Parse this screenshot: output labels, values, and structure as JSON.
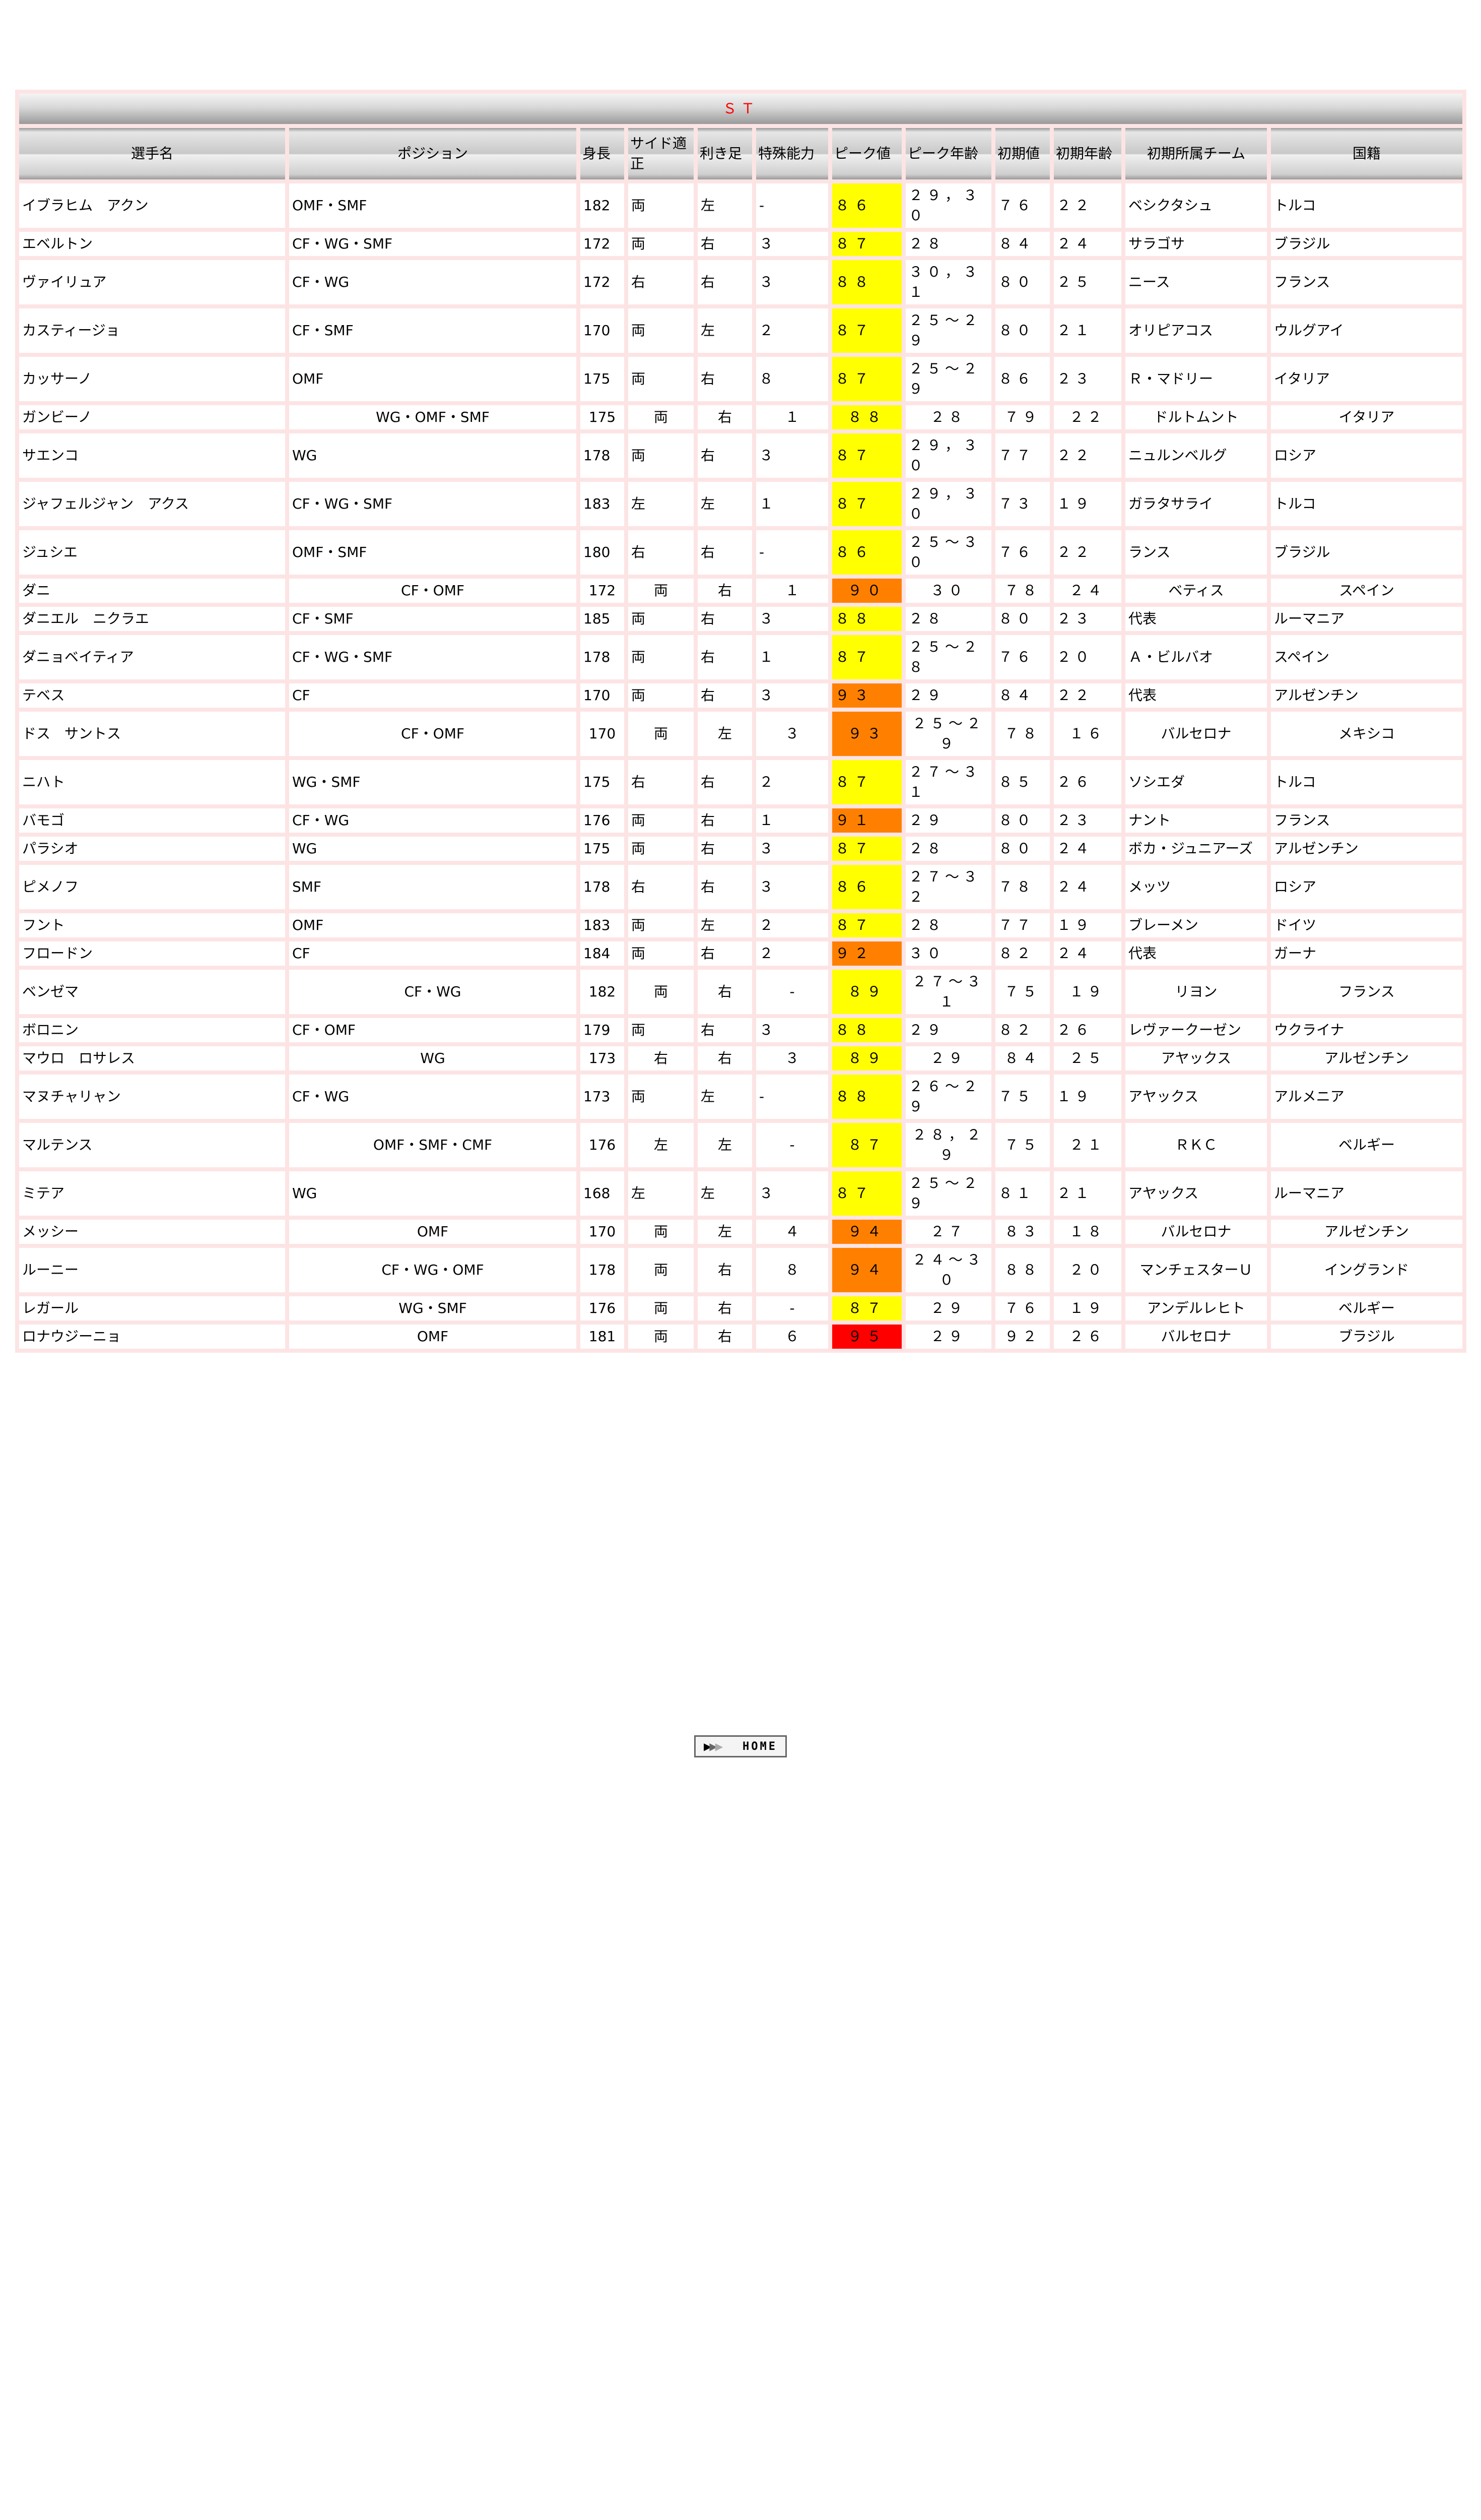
{
  "title": "ＳＴ",
  "headers": [
    "選手名",
    "ポジション",
    "身長",
    "サイド適正",
    "利き足",
    "特殊能力",
    "ピーク値",
    "ピーク年齢",
    "初期値",
    "初期年齢",
    "初期所属チーム",
    "国籍"
  ],
  "peak_colors": {
    "yellow": "#ffff00",
    "orange": "#ff8000",
    "red": "#ff0000"
  },
  "rows": [
    {
      "name": "イブラヒム　アクン",
      "pos": "OMF・SMF",
      "height": "182",
      "side": "両",
      "foot": "左",
      "special": "-",
      "peak": "８６",
      "peak_color": "yellow",
      "peak_age": "２９，３０",
      "init": "７６",
      "init_age": "２２",
      "team": "ベシクタシュ",
      "nation": "トルコ"
    },
    {
      "name": "エベルトン",
      "pos": "CF・WG・SMF",
      "height": "172",
      "side": "両",
      "foot": "右",
      "special": "３",
      "peak": "８７",
      "peak_color": "yellow",
      "peak_age": "２８",
      "init": "８４",
      "init_age": "２４",
      "team": "サラゴサ",
      "nation": "ブラジル"
    },
    {
      "name": "ヴァイリュア",
      "pos": "CF・WG",
      "height": "172",
      "side": "右",
      "foot": "右",
      "special": "３",
      "peak": "８８",
      "peak_color": "yellow",
      "peak_age": "３０，３１",
      "init": "８０",
      "init_age": "２５",
      "team": "ニース",
      "nation": "フランス"
    },
    {
      "name": "カスティージョ",
      "pos": "CF・SMF",
      "height": "170",
      "side": "両",
      "foot": "左",
      "special": "２",
      "peak": "８７",
      "peak_color": "yellow",
      "peak_age": "２５〜２９",
      "init": "８０",
      "init_age": "２１",
      "team": "オリピアコス",
      "nation": "ウルグアイ"
    },
    {
      "name": "カッサーノ",
      "pos": "OMF",
      "height": "175",
      "side": "両",
      "foot": "右",
      "special": "８",
      "peak": "８７",
      "peak_color": "yellow",
      "peak_age": "２５〜２９",
      "init": "８６",
      "init_age": "２３",
      "team": "Ｒ・マドリー",
      "nation": "イタリア"
    },
    {
      "name": "ガンビーノ",
      "pos": "WG・OMF・SMF",
      "height": "175",
      "side": "両",
      "foot": "右",
      "special": "１",
      "peak": "８８",
      "peak_color": "yellow",
      "peak_age": "２８",
      "init": "７９",
      "init_age": "２２",
      "team": "ドルトムント",
      "nation": "イタリア"
    },
    {
      "name": "サエンコ",
      "pos": "WG",
      "height": "178",
      "side": "両",
      "foot": "右",
      "special": "３",
      "peak": "８７",
      "peak_color": "yellow",
      "peak_age": "２９，３０",
      "init": "７７",
      "init_age": "２２",
      "team": "ニュルンベルグ",
      "nation": "ロシア"
    },
    {
      "name": "ジャフェルジャン　アクス",
      "pos": "CF・WG・SMF",
      "height": "183",
      "side": "左",
      "foot": "左",
      "special": "１",
      "peak": "８７",
      "peak_color": "yellow",
      "peak_age": "２９，３０",
      "init": "７３",
      "init_age": "１９",
      "team": "ガラタサライ",
      "nation": "トルコ"
    },
    {
      "name": "ジュシエ",
      "pos": "OMF・SMF",
      "height": "180",
      "side": "右",
      "foot": "右",
      "special": "-",
      "peak": "８６",
      "peak_color": "yellow",
      "peak_age": "２５〜３０",
      "init": "７６",
      "init_age": "２２",
      "team": "ランス",
      "nation": "ブラジル"
    },
    {
      "name": "ダニ",
      "pos": "CF・OMF",
      "height": "172",
      "side": "両",
      "foot": "右",
      "special": "１",
      "peak": "９０",
      "peak_color": "orange",
      "peak_age": "３０",
      "init": "７８",
      "init_age": "２４",
      "team": "ベティス",
      "nation": "スペイン"
    },
    {
      "name": "ダニエル　ニクラエ",
      "pos": "CF・SMF",
      "height": "185",
      "side": "両",
      "foot": "右",
      "special": "３",
      "peak": "８８",
      "peak_color": "yellow",
      "peak_age": "２８",
      "init": "８０",
      "init_age": "２３",
      "team": "代表",
      "nation": "ルーマニア"
    },
    {
      "name": "ダニョベイティア",
      "pos": "CF・WG・SMF",
      "height": "178",
      "side": "両",
      "foot": "右",
      "special": "１",
      "peak": "８７",
      "peak_color": "yellow",
      "peak_age": "２５〜２８",
      "init": "７６",
      "init_age": "２０",
      "team": "Ａ・ビルバオ",
      "nation": "スペイン"
    },
    {
      "name": "テベス",
      "pos": "CF",
      "height": "170",
      "side": "両",
      "foot": "右",
      "special": "３",
      "peak": "９３",
      "peak_color": "orange",
      "peak_age": "２９",
      "init": "８４",
      "init_age": "２２",
      "team": "代表",
      "nation": "アルゼンチン"
    },
    {
      "name": "ドス　サントス",
      "pos": "CF・OMF",
      "height": "170",
      "side": "両",
      "foot": "左",
      "special": "３",
      "peak": "９３",
      "peak_color": "orange",
      "peak_age": "２５〜２９",
      "init": "７８",
      "init_age": "１６",
      "team": "バルセロナ",
      "nation": "メキシコ"
    },
    {
      "name": "ニハト",
      "pos": "WG・SMF",
      "height": "175",
      "side": "右",
      "foot": "右",
      "special": "２",
      "peak": "８７",
      "peak_color": "yellow",
      "peak_age": "２７〜３１",
      "init": "８５",
      "init_age": "２６",
      "team": "ソシエダ",
      "nation": "トルコ"
    },
    {
      "name": "バモゴ",
      "pos": "CF・WG",
      "height": "176",
      "side": "両",
      "foot": "右",
      "special": "１",
      "peak": "９１",
      "peak_color": "orange",
      "peak_age": "２９",
      "init": "８０",
      "init_age": "２３",
      "team": "ナント",
      "nation": "フランス"
    },
    {
      "name": "パラシオ",
      "pos": "WG",
      "height": "175",
      "side": "両",
      "foot": "右",
      "special": "３",
      "peak": "８７",
      "peak_color": "yellow",
      "peak_age": "２８",
      "init": "８０",
      "init_age": "２４",
      "team": "ボカ・ジュニアーズ",
      "nation": "アルゼンチン"
    },
    {
      "name": "ピメノフ",
      "pos": "SMF",
      "height": "178",
      "side": "右",
      "foot": "右",
      "special": "３",
      "peak": "８６",
      "peak_color": "yellow",
      "peak_age": "２７〜３２",
      "init": "７８",
      "init_age": "２４",
      "team": "メッツ",
      "nation": "ロシア"
    },
    {
      "name": "フント",
      "pos": "OMF",
      "height": "183",
      "side": "両",
      "foot": "左",
      "special": "２",
      "peak": "８７",
      "peak_color": "yellow",
      "peak_age": "２８",
      "init": "７７",
      "init_age": "１９",
      "team": "ブレーメン",
      "nation": "ドイツ"
    },
    {
      "name": "フロードン",
      "pos": "CF",
      "height": "184",
      "side": "両",
      "foot": "右",
      "special": "２",
      "peak": "９２",
      "peak_color": "orange",
      "peak_age": "３０",
      "init": "８２",
      "init_age": "２４",
      "team": "代表",
      "nation": "ガーナ"
    },
    {
      "name": "ベンゼマ",
      "pos": "CF・WG",
      "height": "182",
      "side": "両",
      "foot": "右",
      "special": "-",
      "peak": "８９",
      "peak_color": "yellow",
      "peak_age": "２７〜３１",
      "init": "７５",
      "init_age": "１９",
      "team": "リヨン",
      "nation": "フランス"
    },
    {
      "name": "ボロニン",
      "pos": "CF・OMF",
      "height": "179",
      "side": "両",
      "foot": "右",
      "special": "３",
      "peak": "８８",
      "peak_color": "yellow",
      "peak_age": "２９",
      "init": "８２",
      "init_age": "２６",
      "team": "レヴァークーゼン",
      "nation": "ウクライナ"
    },
    {
      "name": "マウロ　ロサレス",
      "pos": "WG",
      "height": "173",
      "side": "右",
      "foot": "右",
      "special": "３",
      "peak": "８９",
      "peak_color": "yellow",
      "peak_age": "２９",
      "init": "８４",
      "init_age": "２５",
      "team": "アヤックス",
      "nation": "アルゼンチン"
    },
    {
      "name": "マヌチャリャン",
      "pos": "CF・WG",
      "height": "173",
      "side": "両",
      "foot": "左",
      "special": "-",
      "peak": "８８",
      "peak_color": "yellow",
      "peak_age": "２６〜２９",
      "init": "７５",
      "init_age": "１９",
      "team": "アヤックス",
      "nation": "アルメニア"
    },
    {
      "name": "マルテンス",
      "pos": "OMF・SMF・CMF",
      "height": "176",
      "side": "左",
      "foot": "左",
      "special": "-",
      "peak": "８７",
      "peak_color": "yellow",
      "peak_age": "２８，２９",
      "init": "７５",
      "init_age": "２１",
      "team": "ＲＫＣ",
      "nation": "ベルギー"
    },
    {
      "name": "ミテア",
      "pos": "WG",
      "height": "168",
      "side": "左",
      "foot": "左",
      "special": "３",
      "peak": "８７",
      "peak_color": "yellow",
      "peak_age": "２５〜２９",
      "init": "８１",
      "init_age": "２１",
      "team": "アヤックス",
      "nation": "ルーマニア"
    },
    {
      "name": "メッシー",
      "pos": "OMF",
      "height": "170",
      "side": "両",
      "foot": "左",
      "special": "４",
      "peak": "９４",
      "peak_color": "orange",
      "peak_age": "２７",
      "init": "８３",
      "init_age": "１８",
      "team": "バルセロナ",
      "nation": "アルゼンチン"
    },
    {
      "name": "ルーニー",
      "pos": "CF・WG・OMF",
      "height": "178",
      "side": "両",
      "foot": "右",
      "special": "８",
      "peak": "９４",
      "peak_color": "orange",
      "peak_age": "２４〜３０",
      "init": "８８",
      "init_age": "２０",
      "team": "マンチェスターＵ",
      "nation": "イングランド"
    },
    {
      "name": "レガール",
      "pos": "WG・SMF",
      "height": "176",
      "side": "両",
      "foot": "右",
      "special": "-",
      "peak": "８７",
      "peak_color": "yellow",
      "peak_age": "２９",
      "init": "７６",
      "init_age": "１９",
      "team": "アンデルレヒト",
      "nation": "ベルギー"
    },
    {
      "name": "ロナウジーニョ",
      "pos": "OMF",
      "height": "181",
      "side": "両",
      "foot": "右",
      "special": "６",
      "peak": "９５",
      "peak_color": "red",
      "peak_age": "２９",
      "init": "９２",
      "init_age": "２６",
      "team": "バルセロナ",
      "nation": "ブラジル"
    }
  ],
  "home_button": {
    "label": "HOME",
    "icon": "triple-arrow-right-icon"
  }
}
